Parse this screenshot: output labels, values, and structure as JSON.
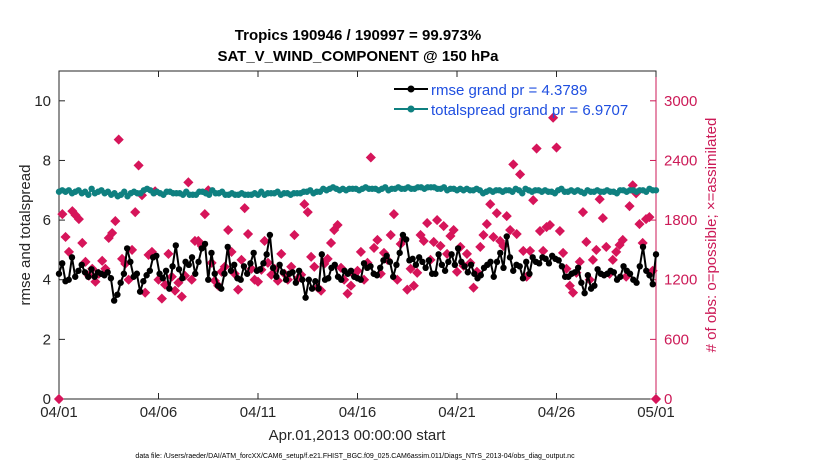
{
  "chart_data": {
    "type": "line",
    "title_line1": "Tropics 190946 / 190997 = 99.973%",
    "title_line2": "SAT_V_WIND_COMPONENT @ 150 hPa",
    "xlabel": "Apr.01,2013 00:00:00 start",
    "ylabel_left": "rmse and totalspread",
    "ylabel_right": "# of obs: o=possible; ×=assimilated",
    "x_ticks": [
      "04/01",
      "04/06",
      "04/11",
      "04/16",
      "04/21",
      "04/26",
      "05/01"
    ],
    "x_range": [
      0,
      30
    ],
    "y_left_range": [
      0,
      11
    ],
    "y_left_ticks": [
      0,
      2,
      4,
      6,
      8,
      10
    ],
    "y_right_range": [
      0,
      3300
    ],
    "y_right_ticks": [
      0,
      600,
      1200,
      1800,
      2400,
      3000
    ],
    "footer": "data file: /Users/raeder/DAI/ATM_forcXX/CAM6_setup/f.e21.FHIST_BGC.f09_025.CAM6assim.011/Diags_NTrS_2013-04/obs_diag_output.nc",
    "colors": {
      "rmse": "#000000",
      "spread": "#0f8080",
      "obs": "#d6155a",
      "right_axis": "#cc1a57",
      "legend_text": "#1f4fe0"
    },
    "series": [
      {
        "name": "rmse grand pr = 4.3789",
        "axis": "left",
        "values": [
          4.2,
          4.55,
          3.95,
          4.0,
          4.75,
          4.1,
          4.3,
          4.5,
          4.25,
          4.1,
          4.35,
          4.1,
          4.25,
          4.2,
          4.15,
          4.25,
          4.05,
          3.3,
          3.5,
          3.9,
          4.2,
          5.05,
          4.6,
          4.1,
          4.2,
          3.6,
          3.95,
          4.15,
          4.3,
          4.75,
          4.8,
          4.2,
          4.05,
          4.3,
          3.7,
          4.45,
          5.15,
          4.35,
          4.05,
          4.6,
          4.5,
          4.75,
          4.2,
          4.6,
          5.05,
          5.2,
          4.0,
          4.9,
          4.2,
          3.8,
          3.7,
          4.2,
          5.1,
          4.3,
          4.5,
          4.05,
          4.0,
          4.45,
          4.2,
          4.55,
          4.9,
          4.3,
          4.35,
          4.55,
          4.85,
          5.5,
          4.4,
          4.1,
          4.5,
          4.25,
          4.0,
          4.2,
          4.25,
          3.9,
          4.3,
          4.0,
          3.4,
          4.0,
          3.7,
          3.95,
          3.7,
          4.85,
          4.0,
          4.05,
          4.4,
          4.5,
          4.1,
          4.0,
          4.3,
          4.2,
          4.3,
          4.1,
          4.05,
          4.0,
          4.55,
          4.4,
          4.45,
          4.2,
          4.15,
          4.4,
          4.65,
          4.8,
          4.6,
          4.1,
          4.5,
          4.9,
          5.5,
          5.35,
          4.65,
          4.7,
          4.5,
          4.75,
          4.6,
          4.4,
          4.65,
          4.2,
          4.2,
          4.85,
          4.5,
          4.3,
          4.6,
          4.85,
          4.5,
          5.05,
          4.6,
          4.45,
          4.25,
          4.5,
          4.2,
          4.05,
          4.15,
          4.4,
          4.5,
          4.6,
          4.1,
          4.6,
          4.9,
          4.4,
          5.45,
          4.75,
          4.3,
          4.5,
          4.45,
          4.05,
          4.6,
          4.2,
          4.75,
          4.6,
          4.55,
          4.75,
          4.7,
          4.55,
          4.8,
          4.7,
          4.65,
          4.45,
          4.1,
          4.1,
          4.2,
          4.25,
          4.4,
          3.9,
          3.55,
          4.15,
          3.7,
          3.8,
          4.35,
          4.2,
          4.15,
          4.2,
          4.3,
          4.25,
          4.0,
          4.1,
          4.45,
          4.3,
          4.2,
          4.0,
          3.9,
          4.45,
          5.1,
          4.3,
          4.15,
          3.85,
          4.85
        ]
      },
      {
        "name": "totalspread grand pr = 6.9707",
        "axis": "left",
        "values": [
          6.95,
          7.0,
          6.95,
          7.0,
          6.9,
          6.95,
          7.0,
          6.9,
          6.95,
          6.85,
          7.05,
          6.9,
          6.95,
          7.0,
          6.9,
          6.95,
          6.85,
          6.9,
          6.8,
          6.85,
          6.95,
          6.8,
          6.9,
          6.95,
          6.9,
          6.9,
          7.0,
          7.05,
          7.0,
          6.9,
          6.95,
          6.9,
          6.85,
          6.95,
          6.95,
          6.9,
          6.9,
          6.9,
          6.85,
          6.95,
          6.85,
          6.85,
          6.85,
          6.95,
          6.95,
          6.9,
          6.85,
          7.0,
          6.9,
          6.9,
          6.95,
          6.85,
          6.85,
          6.9,
          6.85,
          6.85,
          6.9,
          6.85,
          6.85,
          6.85,
          6.9,
          6.85,
          6.95,
          6.85,
          6.9,
          6.9,
          6.9,
          6.95,
          6.85,
          6.9,
          6.9,
          6.85,
          6.9,
          6.9,
          6.9,
          6.95,
          6.95,
          7.0,
          6.9,
          6.95,
          6.95,
          7.05,
          7.0,
          7.05,
          7.1,
          7.05,
          7.0,
          7.05,
          7.0,
          7.05,
          7.05,
          7.05,
          7.0,
          7.05,
          7.1,
          7.05,
          7.05,
          7.05,
          7.0,
          7.05,
          7.1,
          7.0,
          7.05,
          7.05,
          7.1,
          7.05,
          7.05,
          7.1,
          7.05,
          7.05,
          7.1,
          7.1,
          7.05,
          7.1,
          7.1,
          7.1,
          7.05,
          7.05,
          7.1,
          7.0,
          7.05,
          7.05,
          7.0,
          7.05,
          7.0,
          7.05,
          7.0,
          7.0,
          7.05,
          7.0,
          6.9,
          6.95,
          7.0,
          6.95,
          7.0,
          7.0,
          6.95,
          7.0,
          7.0,
          6.95,
          7.05,
          7.0,
          6.9,
          7.05,
          7.0,
          6.95,
          7.0,
          7.0,
          6.95,
          7.0,
          6.95,
          6.95,
          6.9,
          7.0,
          7.05,
          6.95,
          6.95,
          7.0,
          6.95,
          7.0,
          6.95,
          6.9,
          7.0,
          6.95,
          6.95,
          7.0,
          6.95,
          6.95,
          7.0,
          6.95,
          6.95,
          6.9,
          7.0,
          7.0,
          6.95,
          7.0,
          7.0,
          6.95,
          7.0,
          7.0,
          6.95,
          7.05,
          7.0,
          7.0
        ]
      },
      {
        "name": "# of obs assimilated",
        "axis": "right",
        "points": [
          [
            0.0,
            0
          ],
          [
            0.17,
            1860
          ],
          [
            0.33,
            1630
          ],
          [
            0.5,
            1480
          ],
          [
            0.67,
            1890
          ],
          [
            0.83,
            1850
          ],
          [
            1.0,
            1810
          ],
          [
            1.17,
            1570
          ],
          [
            1.33,
            1380
          ],
          [
            1.5,
            1240
          ],
          [
            1.67,
            1310
          ],
          [
            1.83,
            1180
          ],
          [
            2.0,
            1260
          ],
          [
            2.17,
            1390
          ],
          [
            2.33,
            1310
          ],
          [
            2.5,
            1620
          ],
          [
            2.67,
            1670
          ],
          [
            2.83,
            1790
          ],
          [
            3.0,
            2610
          ],
          [
            3.17,
            1410
          ],
          [
            3.33,
            1360
          ],
          [
            3.5,
            1200
          ],
          [
            3.67,
            1500
          ],
          [
            3.83,
            1880
          ],
          [
            4.0,
            2350
          ],
          [
            4.17,
            2050
          ],
          [
            4.33,
            1070
          ],
          [
            4.5,
            1450
          ],
          [
            4.67,
            1480
          ],
          [
            4.83,
            2090
          ],
          [
            5.0,
            1200
          ],
          [
            5.17,
            1010
          ],
          [
            5.33,
            1150
          ],
          [
            5.5,
            1460
          ],
          [
            5.67,
            1230
          ],
          [
            5.83,
            1090
          ],
          [
            6.0,
            1170
          ],
          [
            6.17,
            1030
          ],
          [
            6.33,
            1240
          ],
          [
            6.5,
            2180
          ],
          [
            6.67,
            1200
          ],
          [
            6.83,
            1590
          ],
          [
            7.0,
            1590
          ],
          [
            7.17,
            1540
          ],
          [
            7.33,
            1860
          ],
          [
            7.5,
            2100
          ],
          [
            7.67,
            1370
          ],
          [
            7.83,
            1190
          ],
          [
            8.0,
            1140
          ],
          [
            8.17,
            1280
          ],
          [
            8.33,
            1330
          ],
          [
            8.5,
            1700
          ],
          [
            8.67,
            1480
          ],
          [
            8.83,
            1260
          ],
          [
            9.0,
            1100
          ],
          [
            9.17,
            1400
          ],
          [
            9.33,
            1920
          ],
          [
            9.5,
            1660
          ],
          [
            9.67,
            1310
          ],
          [
            9.83,
            1200
          ],
          [
            10.0,
            1180
          ],
          [
            10.17,
            1300
          ],
          [
            10.33,
            1590
          ],
          [
            10.5,
            1370
          ],
          [
            10.67,
            1250
          ],
          [
            10.83,
            1310
          ],
          [
            11.0,
            1190
          ],
          [
            11.17,
            1460
          ],
          [
            11.33,
            1260
          ],
          [
            11.5,
            1200
          ],
          [
            11.67,
            1330
          ],
          [
            11.83,
            1650
          ],
          [
            12.0,
            1210
          ],
          [
            12.17,
            1250
          ],
          [
            12.33,
            1960
          ],
          [
            12.5,
            1880
          ],
          [
            12.67,
            1430
          ],
          [
            12.83,
            1330
          ],
          [
            13.0,
            1120
          ],
          [
            13.17,
            1090
          ],
          [
            13.33,
            1360
          ],
          [
            13.5,
            1410
          ],
          [
            13.67,
            1570
          ],
          [
            13.83,
            1700
          ],
          [
            14.0,
            1750
          ],
          [
            14.17,
            1320
          ],
          [
            14.33,
            1200
          ],
          [
            14.5,
            1060
          ],
          [
            14.67,
            1140
          ],
          [
            14.83,
            1250
          ],
          [
            15.0,
            1290
          ],
          [
            15.17,
            1480
          ],
          [
            15.33,
            1200
          ],
          [
            15.5,
            1370
          ],
          [
            15.67,
            2430
          ],
          [
            15.83,
            1520
          ],
          [
            16.0,
            1600
          ],
          [
            16.17,
            1260
          ],
          [
            16.33,
            1470
          ],
          [
            16.5,
            1400
          ],
          [
            16.67,
            1650
          ],
          [
            16.83,
            1860
          ],
          [
            17.0,
            1200
          ],
          [
            17.17,
            1560
          ],
          [
            17.33,
            1610
          ],
          [
            17.5,
            1100
          ],
          [
            17.67,
            1310
          ],
          [
            17.83,
            1140
          ],
          [
            18.0,
            1270
          ],
          [
            18.17,
            1650
          ],
          [
            18.33,
            1590
          ],
          [
            18.5,
            1770
          ],
          [
            18.67,
            1400
          ],
          [
            18.83,
            1580
          ],
          [
            19.0,
            1800
          ],
          [
            19.17,
            1540
          ],
          [
            19.33,
            1740
          ],
          [
            19.5,
            1460
          ],
          [
            19.67,
            1640
          ],
          [
            19.83,
            1700
          ],
          [
            20.0,
            1280
          ],
          [
            20.17,
            1530
          ],
          [
            20.33,
            1340
          ],
          [
            20.5,
            1460
          ],
          [
            20.67,
            1370
          ],
          [
            20.83,
            1120
          ],
          [
            21.0,
            1280
          ],
          [
            21.17,
            1530
          ],
          [
            21.33,
            1650
          ],
          [
            21.5,
            1760
          ],
          [
            21.67,
            1960
          ],
          [
            21.83,
            1630
          ],
          [
            22.0,
            1870
          ],
          [
            22.17,
            1590
          ],
          [
            22.33,
            1540
          ],
          [
            22.5,
            1840
          ],
          [
            22.67,
            1700
          ],
          [
            22.83,
            2360
          ],
          [
            23.0,
            1660
          ],
          [
            23.17,
            2260
          ],
          [
            23.33,
            1490
          ],
          [
            23.5,
            1230
          ],
          [
            23.67,
            1490
          ],
          [
            23.83,
            2000
          ],
          [
            24.0,
            2520
          ],
          [
            24.17,
            1690
          ],
          [
            24.33,
            1490
          ],
          [
            24.5,
            1730
          ],
          [
            24.67,
            1750
          ],
          [
            24.83,
            2830
          ],
          [
            25.0,
            2530
          ],
          [
            25.17,
            1690
          ],
          [
            25.33,
            1470
          ],
          [
            25.5,
            1310
          ],
          [
            25.67,
            1140
          ],
          [
            25.83,
            1070
          ],
          [
            26.0,
            1270
          ],
          [
            26.17,
            1380
          ],
          [
            26.33,
            1880
          ],
          [
            26.5,
            1580
          ],
          [
            26.67,
            1200
          ],
          [
            26.83,
            1400
          ],
          [
            27.0,
            1500
          ],
          [
            27.17,
            2010
          ],
          [
            27.33,
            1820
          ],
          [
            27.5,
            1530
          ],
          [
            27.67,
            1260
          ],
          [
            27.83,
            1400
          ],
          [
            28.0,
            1480
          ],
          [
            28.17,
            1550
          ],
          [
            28.33,
            1600
          ],
          [
            28.5,
            1230
          ],
          [
            28.67,
            1940
          ],
          [
            28.83,
            2150
          ],
          [
            29.0,
            2070
          ],
          [
            29.17,
            1760
          ],
          [
            29.33,
            1570
          ],
          [
            29.5,
            1810
          ],
          [
            29.67,
            1830
          ],
          [
            29.83,
            1290
          ],
          [
            30.0,
            0
          ]
        ]
      }
    ]
  }
}
